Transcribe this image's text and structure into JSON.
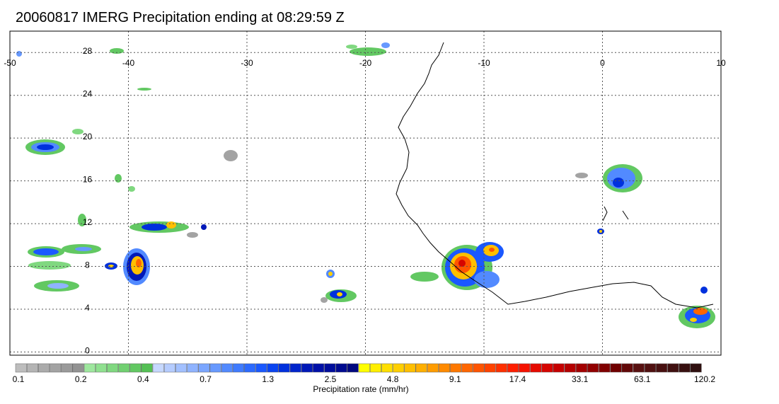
{
  "title": "20060817 IMERG Precipitation ending at 08:29:59 Z",
  "map": {
    "lon_range": [
      -50,
      10
    ],
    "lat_range": [
      -0.3,
      30
    ],
    "lon_ticks": [
      "-50",
      "-40",
      "-30",
      "-20",
      "-10",
      "0",
      "10"
    ],
    "lat_ticks": [
      "0",
      "4",
      "8",
      "12",
      "16",
      "20",
      "24",
      "28"
    ],
    "gridlines": "dotted"
  },
  "colorbar": {
    "label": "Precipitation rate (mm/hr)",
    "tick_labels": [
      "0.1",
      "0.2",
      "0.4",
      "0.7",
      "1.3",
      "2.5",
      "4.8",
      "9.1",
      "17.4",
      "33.1",
      "63.1",
      "120.2"
    ],
    "colors": [
      "#bdbdbd",
      "#b4b4b4",
      "#ababab",
      "#a3a3a3",
      "#9a9a9a",
      "#929292",
      "#9ee79e",
      "#8fe08f",
      "#80d880",
      "#71d071",
      "#62c862",
      "#54c054",
      "#c6d8ff",
      "#b5ccff",
      "#a2c0ff",
      "#8fb3ff",
      "#7ba6ff",
      "#6799ff",
      "#528aff",
      "#3f7bff",
      "#2c6aff",
      "#1a58ff",
      "#0a44f0",
      "#0030dd",
      "#0024cc",
      "#0018b8",
      "#0010a8",
      "#000d9c",
      "#000a90",
      "#00087f",
      "#ffff00",
      "#ffef00",
      "#ffdf00",
      "#ffcf00",
      "#ffbf00",
      "#ffaf00",
      "#ff9c00",
      "#ff8a00",
      "#ff7800",
      "#ff6600",
      "#ff5400",
      "#ff4200",
      "#ff3000",
      "#ff1e00",
      "#f51200",
      "#e60a00",
      "#d60500",
      "#c60000",
      "#b50000",
      "#a30000",
      "#920000",
      "#800000",
      "#700000",
      "#620808",
      "#581010",
      "#501010",
      "#481010",
      "#401010",
      "#381010",
      "#301010"
    ]
  }
}
